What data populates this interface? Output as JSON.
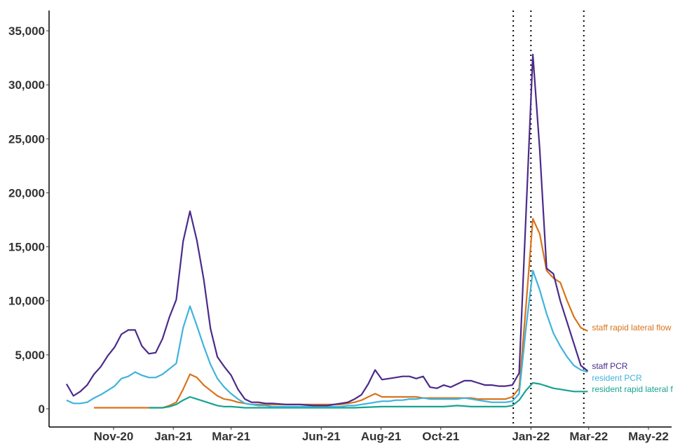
{
  "chart_data": {
    "type": "line",
    "title": "",
    "xlabel": "",
    "ylabel": "",
    "ylim": [
      -1500,
      37000
    ],
    "grid": false,
    "legend": "direct labels at line ends",
    "x_ticks": [
      {
        "date": "2020-11-01",
        "label": "Nov-20"
      },
      {
        "date": "2021-01-01",
        "label": "Jan-21"
      },
      {
        "date": "2021-03-01",
        "label": "Mar-21"
      },
      {
        "date": "2021-06-01",
        "label": "Jun-21"
      },
      {
        "date": "2021-08-01",
        "label": "Aug-21"
      },
      {
        "date": "2021-10-01",
        "label": "Oct-21"
      },
      {
        "date": "2022-01-01",
        "label": "Jan-22"
      },
      {
        "date": "2022-03-01",
        "label": "Mar-22"
      },
      {
        "date": "2022-05-01",
        "label": "May-22"
      }
    ],
    "y_ticks": [
      {
        "value": 0,
        "label": "0"
      },
      {
        "value": 5000,
        "label": "5,000"
      },
      {
        "value": 10000,
        "label": "10,000"
      },
      {
        "value": 15000,
        "label": "15,000"
      },
      {
        "value": 20000,
        "label": "20,000"
      },
      {
        "value": 25000,
        "label": "25,000"
      },
      {
        "value": 30000,
        "label": "30,000"
      },
      {
        "value": 35000,
        "label": "35,000"
      }
    ],
    "vlines": [
      "2021-12-14",
      "2022-01-01",
      "2022-02-24"
    ],
    "series": [
      {
        "name": "staff PCR",
        "color": "#4b2a8a",
        "points": [
          [
            "2020-09-14",
            2300
          ],
          [
            "2020-09-21",
            1200
          ],
          [
            "2020-09-28",
            1600
          ],
          [
            "2020-10-05",
            2200
          ],
          [
            "2020-10-12",
            3200
          ],
          [
            "2020-10-19",
            3900
          ],
          [
            "2020-10-26",
            4900
          ],
          [
            "2020-11-02",
            5700
          ],
          [
            "2020-11-09",
            6900
          ],
          [
            "2020-11-16",
            7300
          ],
          [
            "2020-11-23",
            7300
          ],
          [
            "2020-11-30",
            5800
          ],
          [
            "2020-12-07",
            5100
          ],
          [
            "2020-12-14",
            5200
          ],
          [
            "2020-12-21",
            6500
          ],
          [
            "2020-12-28",
            8500
          ],
          [
            "2021-01-04",
            10100
          ],
          [
            "2021-01-11",
            15500
          ],
          [
            "2021-01-18",
            18300
          ],
          [
            "2021-01-25",
            15600
          ],
          [
            "2021-02-01",
            12000
          ],
          [
            "2021-02-08",
            7400
          ],
          [
            "2021-02-15",
            4800
          ],
          [
            "2021-02-22",
            3900
          ],
          [
            "2021-03-01",
            3100
          ],
          [
            "2021-03-08",
            1800
          ],
          [
            "2021-03-15",
            900
          ],
          [
            "2021-03-22",
            600
          ],
          [
            "2021-03-29",
            600
          ],
          [
            "2021-04-05",
            500
          ],
          [
            "2021-04-12",
            500
          ],
          [
            "2021-04-26",
            400
          ],
          [
            "2021-05-10",
            400
          ],
          [
            "2021-05-24",
            300
          ],
          [
            "2021-06-07",
            300
          ],
          [
            "2021-06-14",
            400
          ],
          [
            "2021-06-21",
            500
          ],
          [
            "2021-06-28",
            600
          ],
          [
            "2021-07-05",
            900
          ],
          [
            "2021-07-12",
            1300
          ],
          [
            "2021-07-19",
            2300
          ],
          [
            "2021-07-26",
            3600
          ],
          [
            "2021-08-02",
            2700
          ],
          [
            "2021-08-09",
            2800
          ],
          [
            "2021-08-16",
            2900
          ],
          [
            "2021-08-23",
            3000
          ],
          [
            "2021-08-30",
            3000
          ],
          [
            "2021-09-06",
            2800
          ],
          [
            "2021-09-13",
            3000
          ],
          [
            "2021-09-20",
            2000
          ],
          [
            "2021-09-27",
            1900
          ],
          [
            "2021-10-04",
            2200
          ],
          [
            "2021-10-11",
            2000
          ],
          [
            "2021-10-18",
            2300
          ],
          [
            "2021-10-25",
            2600
          ],
          [
            "2021-11-01",
            2600
          ],
          [
            "2021-11-08",
            2400
          ],
          [
            "2021-11-15",
            2200
          ],
          [
            "2021-11-22",
            2200
          ],
          [
            "2021-11-29",
            2100
          ],
          [
            "2021-12-06",
            2100
          ],
          [
            "2021-12-13",
            2200
          ],
          [
            "2021-12-20",
            3300
          ],
          [
            "2021-12-27",
            18000
          ],
          [
            "2022-01-03",
            32800
          ],
          [
            "2022-01-10",
            24000
          ],
          [
            "2022-01-17",
            13000
          ],
          [
            "2022-01-24",
            12500
          ],
          [
            "2022-01-31",
            10000
          ],
          [
            "2022-02-07",
            8000
          ],
          [
            "2022-02-14",
            6000
          ],
          [
            "2022-02-21",
            4000
          ],
          [
            "2022-02-28",
            3500
          ]
        ]
      },
      {
        "name": "resident PCR",
        "color": "#3fb3dc",
        "points": [
          [
            "2020-09-14",
            800
          ],
          [
            "2020-09-21",
            500
          ],
          [
            "2020-09-28",
            500
          ],
          [
            "2020-10-05",
            600
          ],
          [
            "2020-10-12",
            1000
          ],
          [
            "2020-10-19",
            1300
          ],
          [
            "2020-10-26",
            1700
          ],
          [
            "2020-11-02",
            2100
          ],
          [
            "2020-11-09",
            2800
          ],
          [
            "2020-11-16",
            3000
          ],
          [
            "2020-11-23",
            3400
          ],
          [
            "2020-11-30",
            3100
          ],
          [
            "2020-12-07",
            2900
          ],
          [
            "2020-12-14",
            2900
          ],
          [
            "2020-12-21",
            3200
          ],
          [
            "2020-12-28",
            3700
          ],
          [
            "2021-01-04",
            4200
          ],
          [
            "2021-01-11",
            7500
          ],
          [
            "2021-01-18",
            9500
          ],
          [
            "2021-01-25",
            7700
          ],
          [
            "2021-02-01",
            5800
          ],
          [
            "2021-02-08",
            4100
          ],
          [
            "2021-02-15",
            2800
          ],
          [
            "2021-02-22",
            2000
          ],
          [
            "2021-03-01",
            1400
          ],
          [
            "2021-03-08",
            900
          ],
          [
            "2021-03-15",
            500
          ],
          [
            "2021-03-22",
            400
          ],
          [
            "2021-03-29",
            300
          ],
          [
            "2021-04-05",
            300
          ],
          [
            "2021-04-12",
            200
          ],
          [
            "2021-04-26",
            200
          ],
          [
            "2021-05-10",
            200
          ],
          [
            "2021-05-24",
            200
          ],
          [
            "2021-06-07",
            200
          ],
          [
            "2021-06-14",
            200
          ],
          [
            "2021-06-21",
            200
          ],
          [
            "2021-06-28",
            300
          ],
          [
            "2021-07-05",
            300
          ],
          [
            "2021-07-12",
            400
          ],
          [
            "2021-07-19",
            500
          ],
          [
            "2021-07-26",
            600
          ],
          [
            "2021-08-02",
            700
          ],
          [
            "2021-08-09",
            700
          ],
          [
            "2021-08-16",
            800
          ],
          [
            "2021-08-23",
            800
          ],
          [
            "2021-08-30",
            900
          ],
          [
            "2021-09-06",
            900
          ],
          [
            "2021-09-13",
            1000
          ],
          [
            "2021-09-20",
            900
          ],
          [
            "2021-09-27",
            900
          ],
          [
            "2021-10-04",
            900
          ],
          [
            "2021-10-11",
            900
          ],
          [
            "2021-10-18",
            900
          ],
          [
            "2021-10-25",
            1000
          ],
          [
            "2021-11-01",
            900
          ],
          [
            "2021-11-08",
            800
          ],
          [
            "2021-11-15",
            700
          ],
          [
            "2021-11-22",
            600
          ],
          [
            "2021-11-29",
            600
          ],
          [
            "2021-12-06",
            600
          ],
          [
            "2021-12-13",
            700
          ],
          [
            "2021-12-20",
            1400
          ],
          [
            "2021-12-27",
            7500
          ],
          [
            "2022-01-03",
            12800
          ],
          [
            "2022-01-10",
            11000
          ],
          [
            "2022-01-17",
            8800
          ],
          [
            "2022-01-24",
            7000
          ],
          [
            "2022-01-31",
            5800
          ],
          [
            "2022-02-07",
            4800
          ],
          [
            "2022-02-14",
            4000
          ],
          [
            "2022-02-21",
            3600
          ],
          [
            "2022-02-28",
            3400
          ]
        ]
      },
      {
        "name": "staff rapid lateral flow",
        "color": "#d9731a",
        "points": [
          [
            "2020-10-12",
            100
          ],
          [
            "2020-10-26",
            100
          ],
          [
            "2020-11-09",
            100
          ],
          [
            "2020-11-23",
            100
          ],
          [
            "2020-12-07",
            100
          ],
          [
            "2020-12-21",
            100
          ],
          [
            "2020-12-28",
            300
          ],
          [
            "2021-01-04",
            600
          ],
          [
            "2021-01-11",
            1800
          ],
          [
            "2021-01-18",
            3200
          ],
          [
            "2021-01-25",
            2900
          ],
          [
            "2021-02-01",
            2200
          ],
          [
            "2021-02-08",
            1700
          ],
          [
            "2021-02-15",
            1200
          ],
          [
            "2021-02-22",
            900
          ],
          [
            "2021-03-01",
            800
          ],
          [
            "2021-03-08",
            600
          ],
          [
            "2021-03-15",
            500
          ],
          [
            "2021-03-22",
            400
          ],
          [
            "2021-03-29",
            400
          ],
          [
            "2021-04-05",
            400
          ],
          [
            "2021-04-12",
            400
          ],
          [
            "2021-04-26",
            400
          ],
          [
            "2021-05-10",
            400
          ],
          [
            "2021-05-24",
            400
          ],
          [
            "2021-06-07",
            400
          ],
          [
            "2021-06-14",
            400
          ],
          [
            "2021-06-21",
            400
          ],
          [
            "2021-06-28",
            500
          ],
          [
            "2021-07-05",
            600
          ],
          [
            "2021-07-12",
            800
          ],
          [
            "2021-07-19",
            1100
          ],
          [
            "2021-07-26",
            1400
          ],
          [
            "2021-08-02",
            1100
          ],
          [
            "2021-08-09",
            1100
          ],
          [
            "2021-08-16",
            1100
          ],
          [
            "2021-08-23",
            1100
          ],
          [
            "2021-08-30",
            1100
          ],
          [
            "2021-09-06",
            1100
          ],
          [
            "2021-09-13",
            1000
          ],
          [
            "2021-09-20",
            1000
          ],
          [
            "2021-09-27",
            1000
          ],
          [
            "2021-10-04",
            1000
          ],
          [
            "2021-10-11",
            1000
          ],
          [
            "2021-10-18",
            1000
          ],
          [
            "2021-10-25",
            1000
          ],
          [
            "2021-11-01",
            1000
          ],
          [
            "2021-11-08",
            900
          ],
          [
            "2021-11-15",
            900
          ],
          [
            "2021-11-22",
            900
          ],
          [
            "2021-11-29",
            900
          ],
          [
            "2021-12-06",
            900
          ],
          [
            "2021-12-13",
            1100
          ],
          [
            "2021-12-20",
            1900
          ],
          [
            "2021-12-27",
            9500
          ],
          [
            "2022-01-03",
            17600
          ],
          [
            "2022-01-10",
            16200
          ],
          [
            "2022-01-17",
            12800
          ],
          [
            "2022-01-24",
            12100
          ],
          [
            "2022-01-31",
            11700
          ],
          [
            "2022-02-07",
            10000
          ],
          [
            "2022-02-14",
            8500
          ],
          [
            "2022-02-21",
            7500
          ],
          [
            "2022-02-28",
            7200
          ]
        ]
      },
      {
        "name": "resident rapid lateral flow",
        "color": "#17a390",
        "points": [
          [
            "2020-12-07",
            100
          ],
          [
            "2020-12-21",
            100
          ],
          [
            "2020-12-28",
            200
          ],
          [
            "2021-01-04",
            400
          ],
          [
            "2021-01-11",
            800
          ],
          [
            "2021-01-18",
            1100
          ],
          [
            "2021-01-25",
            900
          ],
          [
            "2021-02-01",
            700
          ],
          [
            "2021-02-08",
            500
          ],
          [
            "2021-02-15",
            300
          ],
          [
            "2021-02-22",
            200
          ],
          [
            "2021-03-01",
            200
          ],
          [
            "2021-03-15",
            100
          ],
          [
            "2021-04-05",
            100
          ],
          [
            "2021-05-10",
            100
          ],
          [
            "2021-06-07",
            100
          ],
          [
            "2021-07-05",
            100
          ],
          [
            "2021-08-02",
            200
          ],
          [
            "2021-09-06",
            200
          ],
          [
            "2021-10-04",
            200
          ],
          [
            "2021-10-18",
            300
          ],
          [
            "2021-11-01",
            200
          ],
          [
            "2021-11-15",
            200
          ],
          [
            "2021-12-06",
            200
          ],
          [
            "2021-12-13",
            300
          ],
          [
            "2021-12-20",
            800
          ],
          [
            "2021-12-27",
            1700
          ],
          [
            "2022-01-03",
            2400
          ],
          [
            "2022-01-10",
            2300
          ],
          [
            "2022-01-17",
            2100
          ],
          [
            "2022-01-24",
            1900
          ],
          [
            "2022-01-31",
            1800
          ],
          [
            "2022-02-07",
            1700
          ],
          [
            "2022-02-14",
            1600
          ],
          [
            "2022-02-21",
            1600
          ],
          [
            "2022-02-28",
            1600
          ]
        ]
      }
    ]
  }
}
